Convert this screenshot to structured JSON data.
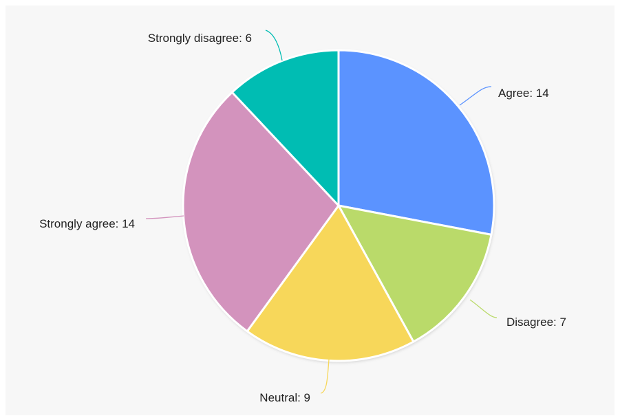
{
  "chart_data": {
    "type": "pie",
    "title": "",
    "start_angle_deg": 0,
    "direction": "clockwise",
    "slices": [
      {
        "label": "Agree",
        "value": 14,
        "color": "#5b93ff"
      },
      {
        "label": "Disagree",
        "value": 7,
        "color": "#bada6a"
      },
      {
        "label": "Neutral",
        "value": 9,
        "color": "#f7d75a"
      },
      {
        "label": "Strongly agree",
        "value": 14,
        "color": "#d393bd"
      },
      {
        "label": "Strongly disagree",
        "value": 6,
        "color": "#00bdb3"
      }
    ],
    "label_format": "{label}: {value}",
    "background": "#f7f7f7"
  }
}
